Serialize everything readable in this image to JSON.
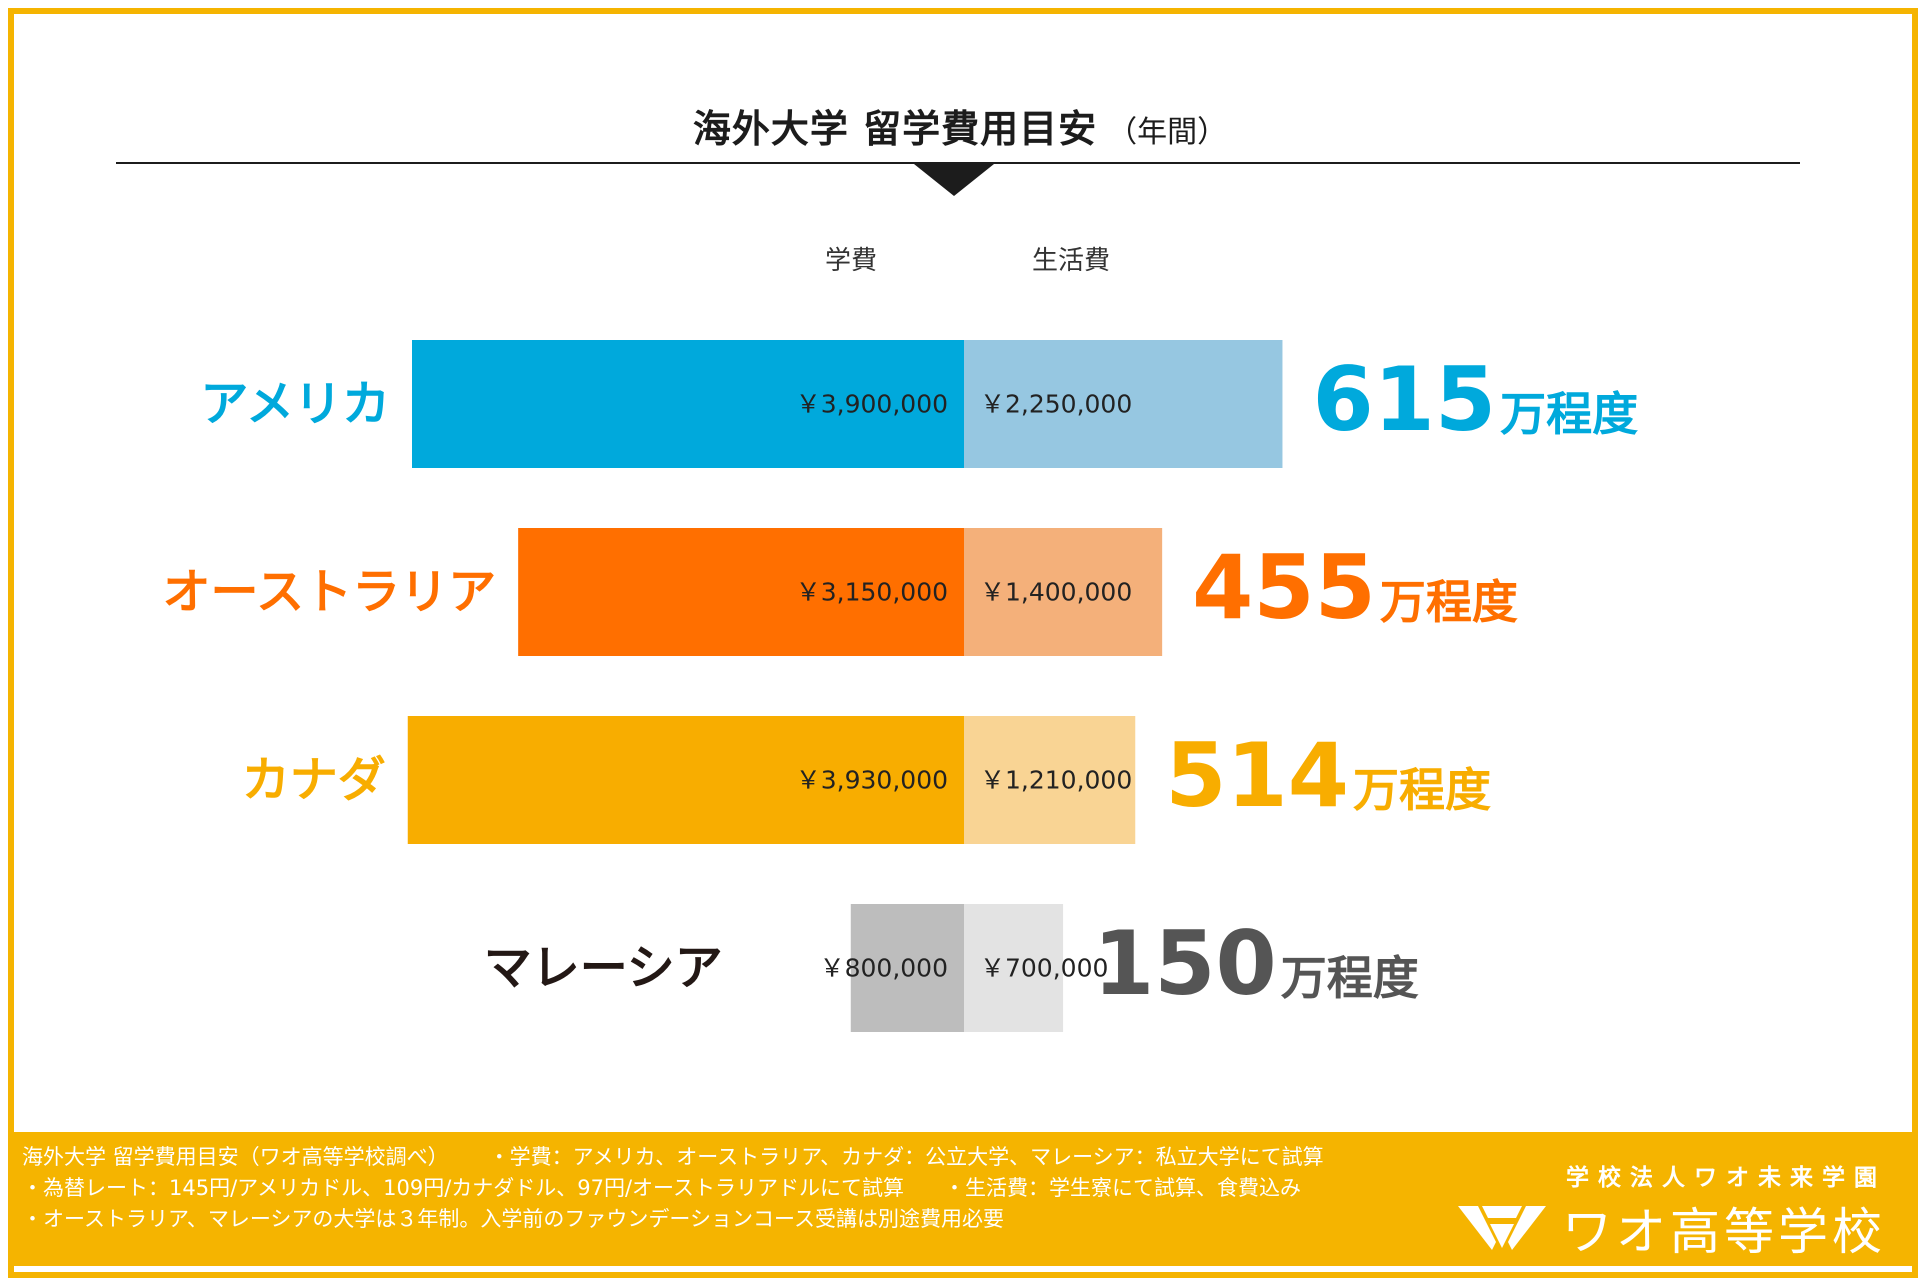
{
  "title": {
    "main": "海外大学 留学費用目安",
    "sub": "（年間）"
  },
  "legend": {
    "tuition": "学費",
    "living": "生活費"
  },
  "chart_data": {
    "type": "bar",
    "orientation": "horizontal",
    "stacked": true,
    "categories": [
      "アメリカ",
      "オーストラリア",
      "カナダ",
      "マレーシア"
    ],
    "series": [
      {
        "name": "学費",
        "values": [
          3900000,
          3150000,
          3930000,
          800000
        ],
        "labels": [
          "￥3,900,000",
          "￥3,150,000",
          "￥3,930,000",
          "￥800,000"
        ],
        "colors": [
          "#00a9dc",
          "#ff6f00",
          "#f8ad00",
          "#bdbdbd"
        ]
      },
      {
        "name": "生活費",
        "values": [
          2250000,
          1400000,
          1210000,
          700000
        ],
        "labels": [
          "￥2,250,000",
          "￥1,400,000",
          "￥1,210,000",
          "￥700,000"
        ],
        "colors": [
          "#96c7e1",
          "#f4b07a",
          "#f9d494",
          "#e3e3e3"
        ]
      }
    ],
    "totals": {
      "numbers": [
        "615",
        "455",
        "514",
        "150"
      ],
      "suffix": "万程度"
    },
    "category_colors": [
      "#00a9dc",
      "#ff6f00",
      "#f8ad00",
      "#231815"
    ],
    "total_colors": [
      "#00a9dc",
      "#ff6f00",
      "#f8ad00",
      "#555555"
    ]
  },
  "footer": {
    "lines": [
      [
        "海外大学 留学費用目安（ワオ高等学校調べ）",
        "・学費：アメリカ、オーストラリア、カナダ：公立大学、マレーシア：私立大学にて試算"
      ],
      [
        "・為替レート：145円/アメリカドル、109円/カナダドル、97円/オーストラリアドルにて試算",
        "・生活費：学生寮にて試算、食費込み"
      ],
      [
        "・オーストラリア、マレーシアの大学は３年制。入学前のファウンデーションコース受講は別途費用必要"
      ]
    ],
    "org": "学校法人ワオ未来学園",
    "school": "ワオ高等学校",
    "bg_color": "#f5b400"
  }
}
